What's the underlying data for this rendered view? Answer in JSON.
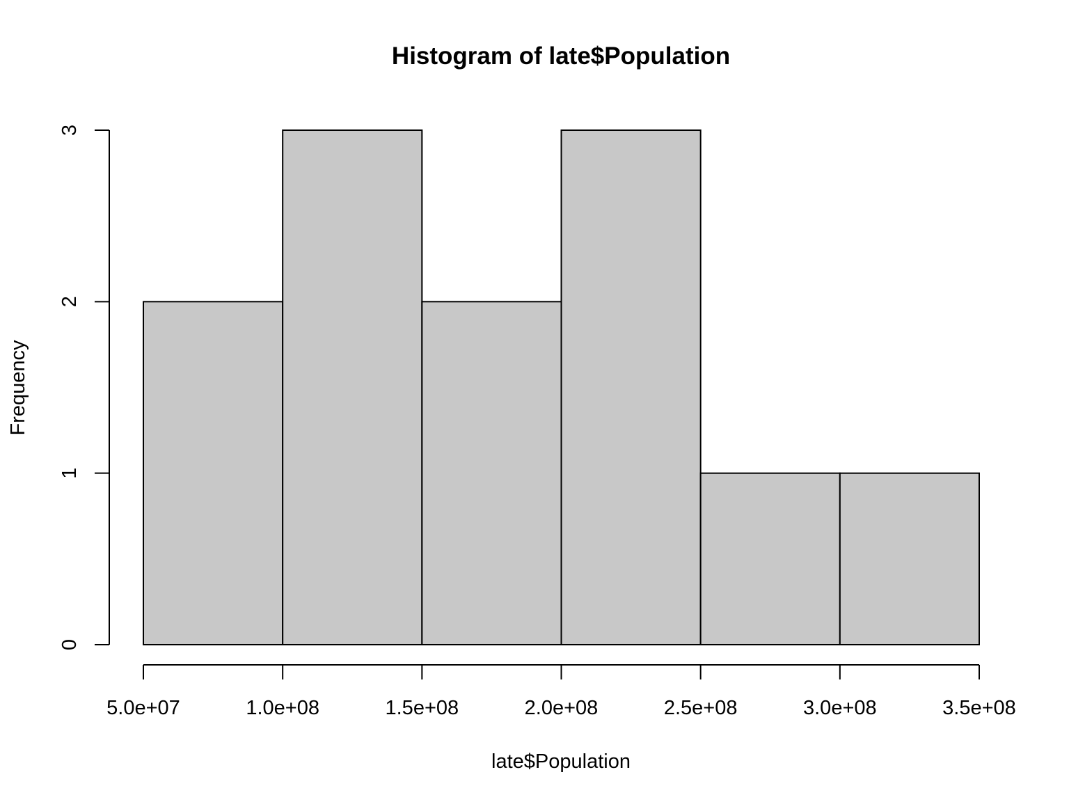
{
  "chart_data": {
    "type": "bar",
    "subtype": "histogram",
    "title": "Histogram of late$Population",
    "xlabel": "late$Population",
    "ylabel": "Frequency",
    "bins": [
      {
        "start": 50000000,
        "end": 100000000,
        "count": 2
      },
      {
        "start": 100000000,
        "end": 150000000,
        "count": 3
      },
      {
        "start": 150000000,
        "end": 200000000,
        "count": 2
      },
      {
        "start": 200000000,
        "end": 250000000,
        "count": 3
      },
      {
        "start": 250000000,
        "end": 300000000,
        "count": 1
      },
      {
        "start": 300000000,
        "end": 350000000,
        "count": 1
      }
    ],
    "xlim": [
      50000000,
      350000000
    ],
    "ylim": [
      0,
      3
    ],
    "x_ticks": [
      {
        "value": 50000000,
        "label": "5.0e+07"
      },
      {
        "value": 100000000,
        "label": "1.0e+08"
      },
      {
        "value": 150000000,
        "label": "1.5e+08"
      },
      {
        "value": 200000000,
        "label": "2.0e+08"
      },
      {
        "value": 250000000,
        "label": "2.5e+08"
      },
      {
        "value": 300000000,
        "label": "3.0e+08"
      },
      {
        "value": 350000000,
        "label": "3.5e+08"
      }
    ],
    "y_ticks": [
      {
        "value": 0,
        "label": "0"
      },
      {
        "value": 1,
        "label": "1"
      },
      {
        "value": 2,
        "label": "2"
      },
      {
        "value": 3,
        "label": "3"
      }
    ],
    "bar_color": "#c8c8c8",
    "grid": false,
    "legend": "none"
  }
}
